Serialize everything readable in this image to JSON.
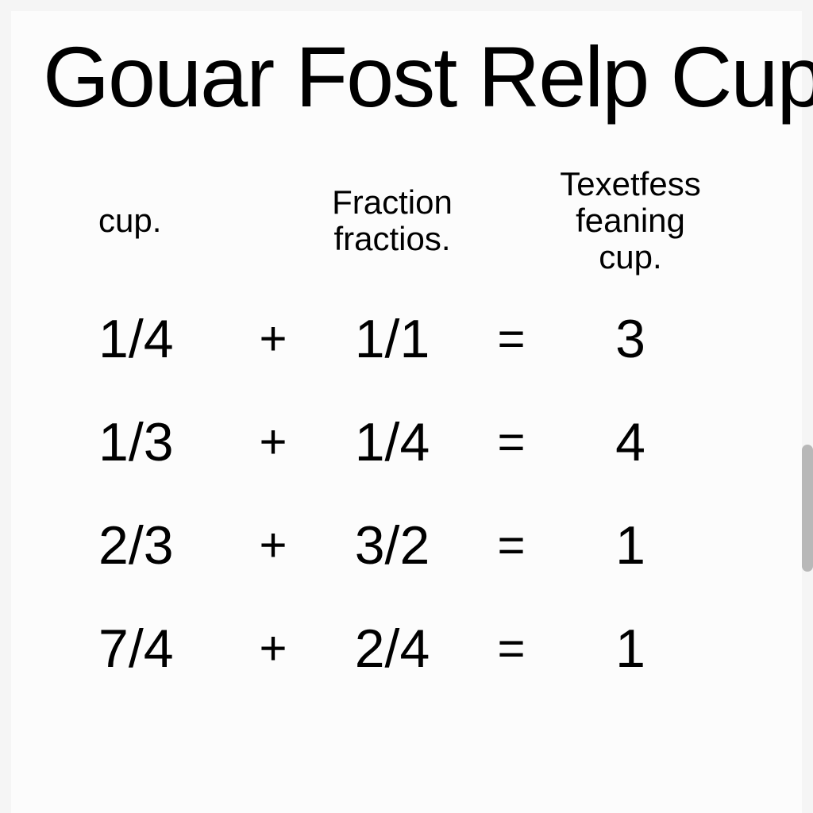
{
  "title": "Gouar Fost Relp Cup",
  "headers": {
    "col1": "cup.",
    "col2": "Fraction fractios.",
    "col3": "Texetfess feaning cup."
  },
  "rows": [
    {
      "a": "1/4",
      "op1": "+",
      "b": "1/1",
      "op2": "=",
      "c": "3"
    },
    {
      "a": "1/3",
      "op1": "+",
      "b": "1/4",
      "op2": "=",
      "c": "4"
    },
    {
      "a": "2/3",
      "op1": "+",
      "b": "3/2",
      "op2": "=",
      "c": "1"
    },
    {
      "a": "7/4",
      "op1": "+",
      "b": "2/4",
      "op2": "=",
      "c": "1"
    }
  ],
  "styling": {
    "background_color": "#f5f5f5",
    "page_color": "#fcfcfc",
    "text_color": "#000000",
    "title_fontsize": 108,
    "header_fontsize": 42,
    "cell_fontsize": 68,
    "operator_fontsize": 60,
    "scrollbar_color": "#b8b8b8"
  }
}
